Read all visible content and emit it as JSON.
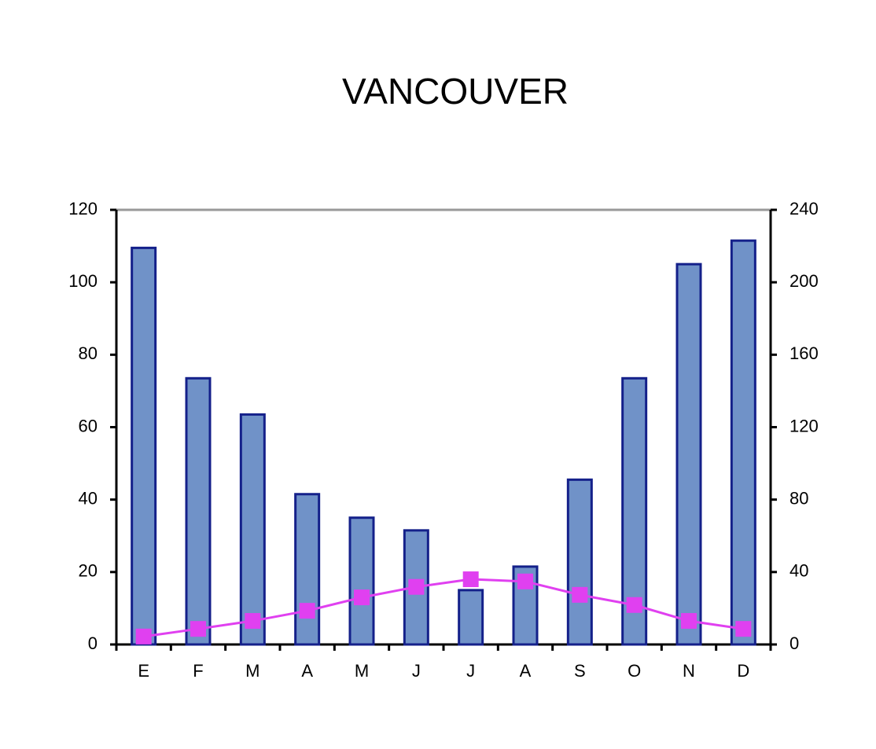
{
  "chart_data": {
    "type": "bar-line",
    "title": "VANCOUVER",
    "categories": [
      "E",
      "F",
      "M",
      "A",
      "M",
      "J",
      "J",
      "A",
      "S",
      "O",
      "N",
      "D"
    ],
    "series": [
      {
        "type": "bar",
        "axis": "y2",
        "color": "#7092c8",
        "edge_color": "#14208a",
        "values": [
          219,
          147,
          127,
          83,
          70,
          63,
          30,
          43,
          91,
          147,
          210,
          223
        ]
      },
      {
        "type": "line",
        "axis": "y",
        "color": "#e040f0",
        "values": [
          2.2,
          4.3,
          6.5,
          9.3,
          13,
          15.9,
          18,
          17.4,
          13.7,
          10.9,
          6.5,
          4.3
        ]
      }
    ],
    "ylim": [
      0,
      120
    ],
    "yticks": [
      0,
      20,
      40,
      60,
      80,
      100,
      120
    ],
    "y2lim": [
      0,
      240
    ],
    "y2ticks": [
      0,
      40,
      80,
      120,
      160,
      200,
      240
    ]
  }
}
